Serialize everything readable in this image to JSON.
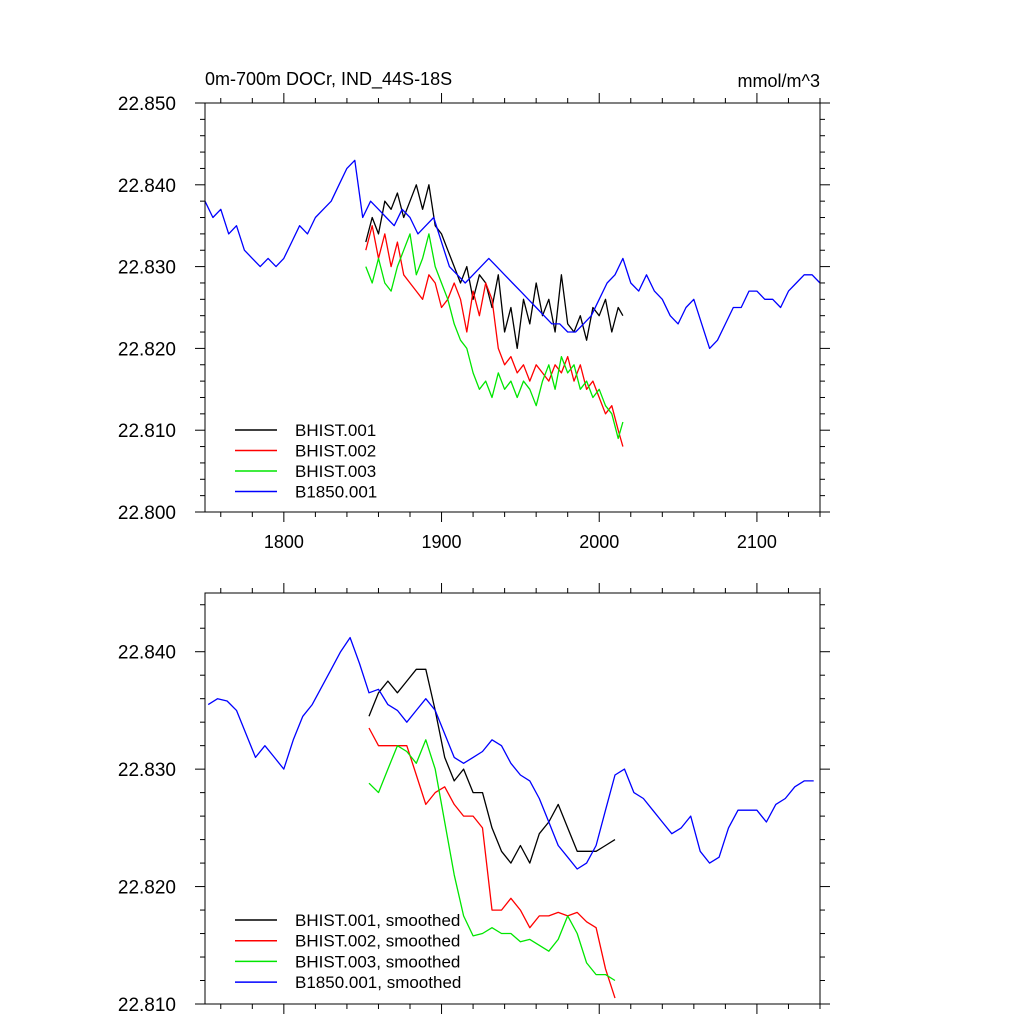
{
  "colors": {
    "BHIST.001": "#000000",
    "BHIST.002": "#ff0000",
    "BHIST.003": "#00e600",
    "B1850.001": "#0000ff"
  },
  "chart_data": [
    {
      "type": "line",
      "title": "0m-700m DOCr, IND_44S-18S",
      "units_label": "mmol/m^3",
      "xlim": [
        1750,
        2140
      ],
      "ylim": [
        22.8,
        22.85
      ],
      "x_ticks": [
        1800,
        1900,
        2000,
        2100
      ],
      "x_tick_labels": [
        "1800",
        "1900",
        "2000",
        "2100"
      ],
      "y_ticks": [
        22.8,
        22.81,
        22.82,
        22.83,
        22.84,
        22.85
      ],
      "y_tick_labels": [
        "22.800",
        "22.810",
        "22.820",
        "22.830",
        "22.840",
        "22.850"
      ],
      "grid": false,
      "legend_position": "bottom-left",
      "series": [
        {
          "name": "BHIST.001",
          "x": [
            1852,
            1856,
            1860,
            1864,
            1868,
            1872,
            1876,
            1880,
            1884,
            1888,
            1892,
            1896,
            1900,
            1904,
            1908,
            1912,
            1916,
            1920,
            1924,
            1928,
            1932,
            1936,
            1940,
            1944,
            1948,
            1952,
            1956,
            1960,
            1964,
            1968,
            1972,
            1976,
            1980,
            1984,
            1988,
            1992,
            1996,
            2000,
            2004,
            2008,
            2012,
            2015
          ],
          "y": [
            22.833,
            22.836,
            22.834,
            22.838,
            22.837,
            22.839,
            22.836,
            22.838,
            22.84,
            22.837,
            22.84,
            22.835,
            22.834,
            22.832,
            22.83,
            22.828,
            22.83,
            22.826,
            22.829,
            22.828,
            22.825,
            22.829,
            22.822,
            22.825,
            22.82,
            22.826,
            22.823,
            22.828,
            22.824,
            22.826,
            22.822,
            22.829,
            22.823,
            22.822,
            22.824,
            22.821,
            22.825,
            22.824,
            22.826,
            22.822,
            22.825,
            22.824
          ]
        },
        {
          "name": "BHIST.002",
          "x": [
            1852,
            1856,
            1860,
            1864,
            1868,
            1872,
            1876,
            1880,
            1884,
            1888,
            1892,
            1896,
            1900,
            1904,
            1908,
            1912,
            1916,
            1920,
            1924,
            1928,
            1932,
            1936,
            1940,
            1944,
            1948,
            1952,
            1956,
            1960,
            1964,
            1968,
            1972,
            1976,
            1980,
            1984,
            1988,
            1992,
            1996,
            2000,
            2004,
            2008,
            2012,
            2015
          ],
          "y": [
            22.832,
            22.835,
            22.831,
            22.834,
            22.83,
            22.833,
            22.829,
            22.828,
            22.827,
            22.826,
            22.829,
            22.828,
            22.825,
            22.826,
            22.828,
            22.826,
            22.822,
            22.827,
            22.824,
            22.828,
            22.826,
            22.82,
            22.818,
            22.819,
            22.817,
            22.818,
            22.816,
            22.818,
            22.817,
            22.816,
            22.818,
            22.817,
            22.819,
            22.816,
            22.818,
            22.815,
            22.816,
            22.814,
            22.812,
            22.813,
            22.81,
            22.808
          ]
        },
        {
          "name": "BHIST.003",
          "x": [
            1852,
            1856,
            1860,
            1864,
            1868,
            1872,
            1876,
            1880,
            1884,
            1888,
            1892,
            1896,
            1900,
            1904,
            1908,
            1912,
            1916,
            1920,
            1924,
            1928,
            1932,
            1936,
            1940,
            1944,
            1948,
            1952,
            1956,
            1960,
            1964,
            1968,
            1972,
            1976,
            1980,
            1984,
            1988,
            1992,
            1996,
            2000,
            2004,
            2008,
            2012,
            2015
          ],
          "y": [
            22.83,
            22.828,
            22.831,
            22.828,
            22.827,
            22.83,
            22.832,
            22.834,
            22.829,
            22.831,
            22.834,
            22.83,
            22.828,
            22.826,
            22.823,
            22.821,
            22.82,
            22.817,
            22.815,
            22.816,
            22.814,
            22.817,
            22.815,
            22.816,
            22.814,
            22.816,
            22.815,
            22.813,
            22.816,
            22.818,
            22.815,
            22.819,
            22.817,
            22.818,
            22.815,
            22.816,
            22.814,
            22.815,
            22.813,
            22.812,
            22.809,
            22.811
          ]
        },
        {
          "name": "B1850.001",
          "x": [
            1750,
            1755,
            1760,
            1765,
            1770,
            1775,
            1780,
            1785,
            1790,
            1795,
            1800,
            1805,
            1810,
            1815,
            1820,
            1825,
            1830,
            1835,
            1840,
            1845,
            1850,
            1855,
            1860,
            1865,
            1870,
            1875,
            1880,
            1885,
            1890,
            1895,
            1900,
            1905,
            1910,
            1915,
            1920,
            1925,
            1930,
            1935,
            1940,
            1945,
            1950,
            1955,
            1960,
            1965,
            1970,
            1975,
            1980,
            1985,
            1990,
            1995,
            2000,
            2005,
            2010,
            2015,
            2020,
            2025,
            2030,
            2035,
            2040,
            2045,
            2050,
            2055,
            2060,
            2065,
            2070,
            2075,
            2080,
            2085,
            2090,
            2095,
            2100,
            2105,
            2110,
            2115,
            2120,
            2125,
            2130,
            2135,
            2140
          ],
          "y": [
            22.838,
            22.836,
            22.837,
            22.834,
            22.835,
            22.832,
            22.831,
            22.83,
            22.831,
            22.83,
            22.831,
            22.833,
            22.835,
            22.834,
            22.836,
            22.837,
            22.838,
            22.84,
            22.842,
            22.843,
            22.836,
            22.838,
            22.837,
            22.836,
            22.835,
            22.837,
            22.836,
            22.834,
            22.835,
            22.836,
            22.833,
            22.83,
            22.829,
            22.828,
            22.829,
            22.83,
            22.831,
            22.83,
            22.829,
            22.828,
            22.827,
            22.826,
            22.825,
            22.824,
            22.823,
            22.823,
            22.822,
            22.822,
            22.823,
            22.824,
            22.826,
            22.828,
            22.829,
            22.831,
            22.828,
            22.827,
            22.829,
            22.827,
            22.826,
            22.824,
            22.823,
            22.825,
            22.826,
            22.823,
            22.82,
            22.821,
            22.823,
            22.825,
            22.825,
            22.827,
            22.827,
            22.826,
            22.826,
            22.825,
            22.827,
            22.828,
            22.829,
            22.829,
            22.828
          ]
        }
      ]
    },
    {
      "type": "line",
      "xlim": [
        1750,
        2140
      ],
      "ylim": [
        22.81,
        22.845
      ],
      "x_ticks": [
        1800,
        1900,
        2000,
        2100
      ],
      "x_tick_labels": [
        "",
        "",
        "",
        ""
      ],
      "y_ticks": [
        22.81,
        22.82,
        22.83,
        22.84
      ],
      "y_tick_labels": [
        "22.810",
        "22.820",
        "22.830",
        "22.840"
      ],
      "grid": false,
      "legend_position": "bottom-left",
      "series": [
        {
          "name": "BHIST.001, smoothed",
          "x": [
            1854,
            1860,
            1866,
            1872,
            1878,
            1884,
            1890,
            1896,
            1902,
            1908,
            1914,
            1920,
            1926,
            1932,
            1938,
            1944,
            1950,
            1956,
            1962,
            1968,
            1974,
            1980,
            1986,
            1992,
            1998,
            2004,
            2010
          ],
          "y": [
            22.8345,
            22.8365,
            22.8375,
            22.8365,
            22.8375,
            22.8385,
            22.8385,
            22.835,
            22.831,
            22.829,
            22.83,
            22.828,
            22.828,
            22.825,
            22.823,
            22.822,
            22.8235,
            22.822,
            22.8245,
            22.8255,
            22.827,
            22.825,
            22.823,
            22.823,
            22.823,
            22.8235,
            22.824
          ]
        },
        {
          "name": "BHIST.002, smoothed",
          "x": [
            1854,
            1860,
            1866,
            1872,
            1878,
            1884,
            1890,
            1896,
            1902,
            1908,
            1914,
            1920,
            1926,
            1932,
            1938,
            1944,
            1950,
            1956,
            1962,
            1968,
            1974,
            1980,
            1986,
            1992,
            1998,
            2004,
            2010
          ],
          "y": [
            22.8335,
            22.832,
            22.832,
            22.832,
            22.832,
            22.8295,
            22.827,
            22.828,
            22.8285,
            22.827,
            22.826,
            22.826,
            22.825,
            22.818,
            22.818,
            22.819,
            22.818,
            22.8165,
            22.8175,
            22.8175,
            22.8178,
            22.8175,
            22.8178,
            22.817,
            22.8165,
            22.813,
            22.8105
          ]
        },
        {
          "name": "BHIST.003, smoothed",
          "x": [
            1854,
            1860,
            1866,
            1872,
            1878,
            1884,
            1890,
            1896,
            1902,
            1908,
            1914,
            1920,
            1926,
            1932,
            1938,
            1944,
            1950,
            1956,
            1962,
            1968,
            1974,
            1980,
            1986,
            1992,
            1998,
            2004,
            2010
          ],
          "y": [
            22.8288,
            22.828,
            22.83,
            22.832,
            22.8315,
            22.8305,
            22.8325,
            22.83,
            22.8255,
            22.821,
            22.8175,
            22.8158,
            22.816,
            22.8165,
            22.816,
            22.816,
            22.8153,
            22.8155,
            22.815,
            22.8145,
            22.8155,
            22.8175,
            22.816,
            22.8135,
            22.8125,
            22.8125,
            22.812
          ]
        },
        {
          "name": "B1850.001, smoothed",
          "x": [
            1752,
            1758,
            1764,
            1770,
            1776,
            1782,
            1788,
            1794,
            1800,
            1806,
            1812,
            1818,
            1824,
            1830,
            1836,
            1842,
            1848,
            1854,
            1860,
            1866,
            1872,
            1878,
            1884,
            1890,
            1896,
            1902,
            1908,
            1914,
            1920,
            1926,
            1932,
            1938,
            1944,
            1950,
            1956,
            1962,
            1968,
            1974,
            1980,
            1986,
            1992,
            1998,
            2004,
            2010,
            2016,
            2022,
            2028,
            2034,
            2040,
            2046,
            2052,
            2058,
            2064,
            2070,
            2076,
            2082,
            2088,
            2094,
            2100,
            2106,
            2112,
            2118,
            2124,
            2130,
            2136
          ],
          "y": [
            22.8355,
            22.836,
            22.8358,
            22.835,
            22.833,
            22.831,
            22.832,
            22.831,
            22.83,
            22.8325,
            22.8345,
            22.8355,
            22.837,
            22.8385,
            22.84,
            22.8412,
            22.839,
            22.8365,
            22.8368,
            22.8355,
            22.835,
            22.834,
            22.835,
            22.836,
            22.835,
            22.833,
            22.831,
            22.8305,
            22.831,
            22.8315,
            22.8325,
            22.832,
            22.8305,
            22.8295,
            22.829,
            22.8275,
            22.8255,
            22.8235,
            22.8225,
            22.8215,
            22.822,
            22.8235,
            22.8265,
            22.8295,
            22.83,
            22.828,
            22.8275,
            22.8265,
            22.8255,
            22.8245,
            22.825,
            22.826,
            22.823,
            22.822,
            22.8225,
            22.825,
            22.8265,
            22.8265,
            22.8265,
            22.8255,
            22.827,
            22.8275,
            22.8285,
            22.829,
            22.829
          ]
        }
      ]
    }
  ]
}
